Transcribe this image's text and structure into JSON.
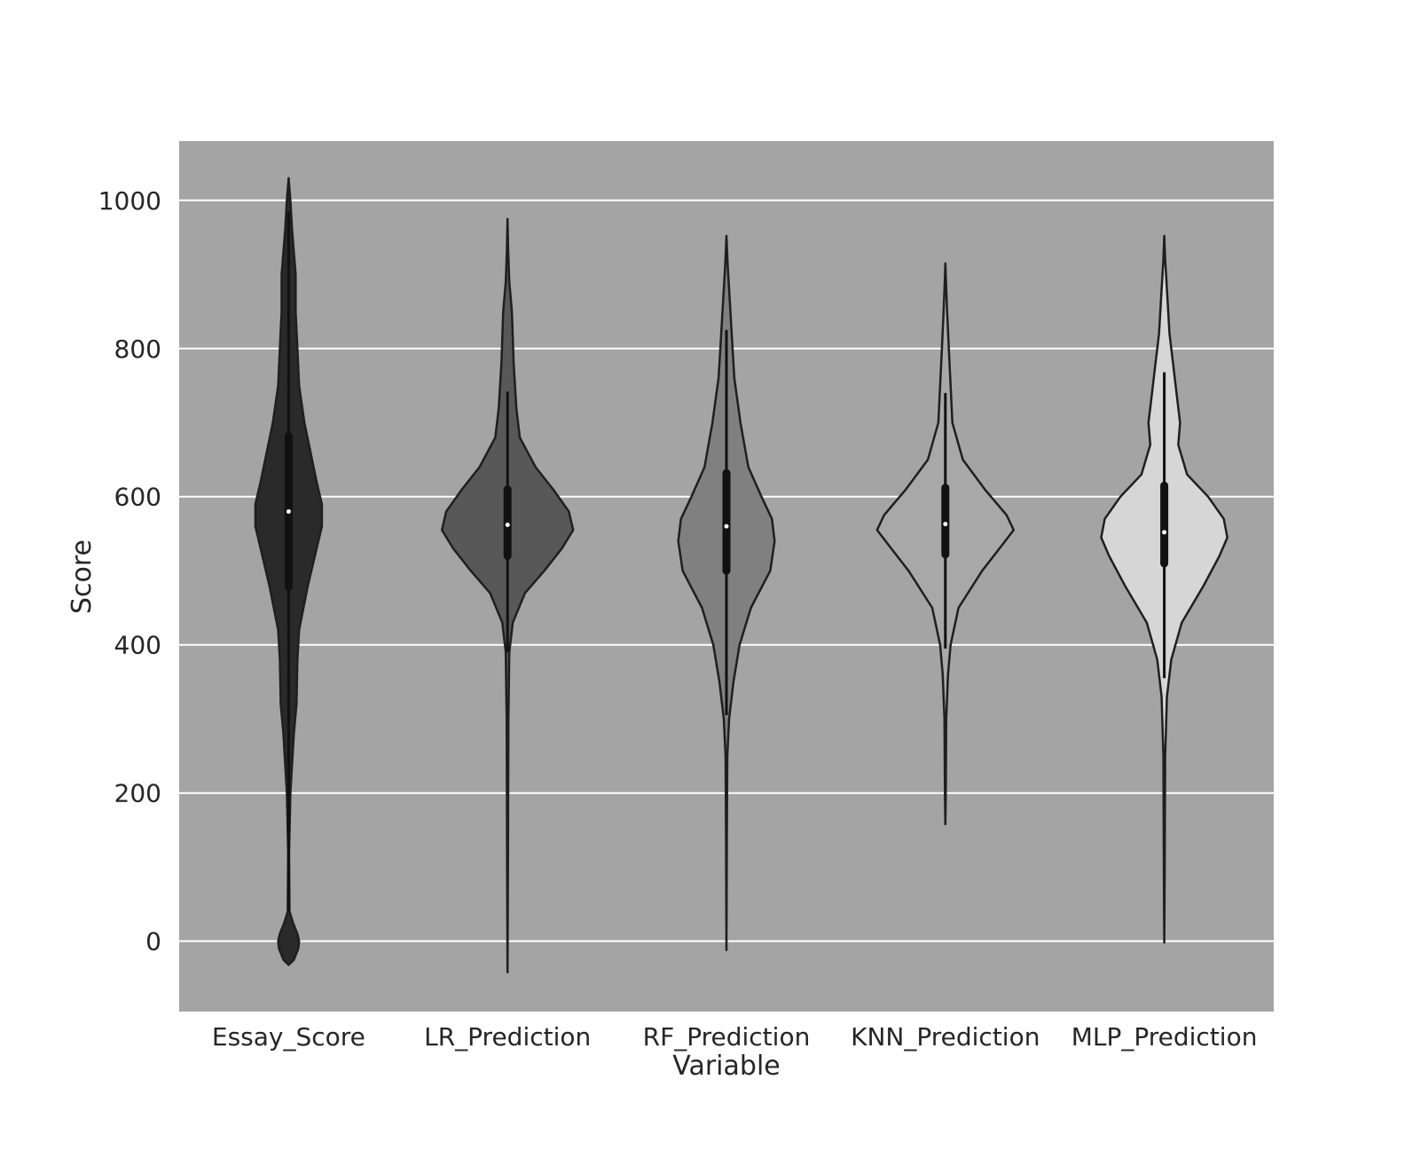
{
  "chart_data": {
    "type": "violin",
    "title": "",
    "xlabel": "Variable",
    "ylabel": "Score",
    "ylim": [
      -95,
      1080
    ],
    "yticks": [
      0,
      200,
      400,
      600,
      800,
      1000
    ],
    "grid": "horizontal",
    "colors": {
      "background": "#a4a4a4",
      "grid": "#ffffff",
      "outline": "#1f1f1f",
      "box": "#111111",
      "median": "#ffffff"
    },
    "categories": [
      "Essay_Score",
      "LR_Prediction",
      "RF_Prediction",
      "KNN_Prediction",
      "MLP_Prediction"
    ],
    "series": [
      {
        "fill": "#2a2a2a",
        "min": -32,
        "max": 1030,
        "q1": 478,
        "median": 580,
        "q3": 682,
        "whisker_low": 40,
        "whisker_high": 985,
        "density": [
          [
            -32,
            0
          ],
          [
            -25,
            0.06
          ],
          [
            -10,
            0.11
          ],
          [
            0,
            0.12
          ],
          [
            10,
            0.1
          ],
          [
            25,
            0.05
          ],
          [
            40,
            0.01
          ],
          [
            120,
            0.005
          ],
          [
            200,
            0.02
          ],
          [
            280,
            0.06
          ],
          [
            320,
            0.09
          ],
          [
            380,
            0.1
          ],
          [
            420,
            0.12
          ],
          [
            480,
            0.22
          ],
          [
            520,
            0.3
          ],
          [
            560,
            0.38
          ],
          [
            590,
            0.38
          ],
          [
            620,
            0.32
          ],
          [
            660,
            0.25
          ],
          [
            700,
            0.18
          ],
          [
            750,
            0.12
          ],
          [
            800,
            0.1
          ],
          [
            850,
            0.08
          ],
          [
            900,
            0.08
          ],
          [
            930,
            0.06
          ],
          [
            960,
            0.04
          ],
          [
            1000,
            0.02
          ],
          [
            1030,
            0
          ]
        ]
      },
      {
        "fill": "#585858",
        "min": -42,
        "max": 975,
        "q1": 520,
        "median": 562,
        "q3": 610,
        "whisker_low": 390,
        "whisker_high": 742,
        "density": [
          [
            -42,
            0
          ],
          [
            100,
            0.005
          ],
          [
            300,
            0.01
          ],
          [
            390,
            0.02
          ],
          [
            430,
            0.06
          ],
          [
            470,
            0.2
          ],
          [
            500,
            0.42
          ],
          [
            530,
            0.62
          ],
          [
            555,
            0.75
          ],
          [
            580,
            0.7
          ],
          [
            610,
            0.52
          ],
          [
            640,
            0.32
          ],
          [
            680,
            0.14
          ],
          [
            720,
            0.1
          ],
          [
            780,
            0.07
          ],
          [
            850,
            0.05
          ],
          [
            890,
            0.02
          ],
          [
            930,
            0.008
          ],
          [
            975,
            0
          ]
        ]
      },
      {
        "fill": "#808080",
        "min": -12,
        "max": 952,
        "q1": 500,
        "median": 560,
        "q3": 632,
        "whisker_low": 305,
        "whisker_high": 825,
        "density": [
          [
            -12,
            0
          ],
          [
            150,
            0.005
          ],
          [
            250,
            0.01
          ],
          [
            300,
            0.03
          ],
          [
            350,
            0.08
          ],
          [
            400,
            0.15
          ],
          [
            450,
            0.28
          ],
          [
            500,
            0.5
          ],
          [
            540,
            0.55
          ],
          [
            570,
            0.52
          ],
          [
            600,
            0.4
          ],
          [
            640,
            0.25
          ],
          [
            700,
            0.16
          ],
          [
            760,
            0.09
          ],
          [
            820,
            0.06
          ],
          [
            880,
            0.03
          ],
          [
            910,
            0.015
          ],
          [
            952,
            0
          ]
        ]
      },
      {
        "fill": "#a8a8a8",
        "min": 158,
        "max": 915,
        "q1": 522,
        "median": 563,
        "q3": 612,
        "whisker_low": 395,
        "whisker_high": 740,
        "density": [
          [
            158,
            0
          ],
          [
            200,
            0.005
          ],
          [
            300,
            0.01
          ],
          [
            360,
            0.03
          ],
          [
            400,
            0.06
          ],
          [
            450,
            0.15
          ],
          [
            500,
            0.42
          ],
          [
            535,
            0.65
          ],
          [
            555,
            0.78
          ],
          [
            575,
            0.7
          ],
          [
            610,
            0.45
          ],
          [
            650,
            0.2
          ],
          [
            700,
            0.08
          ],
          [
            750,
            0.06
          ],
          [
            800,
            0.04
          ],
          [
            850,
            0.02
          ],
          [
            880,
            0.01
          ],
          [
            915,
            0
          ]
        ]
      },
      {
        "fill": "#d6d6d6",
        "min": -2,
        "max": 952,
        "q1": 510,
        "median": 552,
        "q3": 615,
        "whisker_low": 355,
        "whisker_high": 768,
        "density": [
          [
            -2,
            0
          ],
          [
            100,
            0.005
          ],
          [
            250,
            0.01
          ],
          [
            330,
            0.03
          ],
          [
            380,
            0.08
          ],
          [
            430,
            0.2
          ],
          [
            480,
            0.45
          ],
          [
            520,
            0.63
          ],
          [
            545,
            0.72
          ],
          [
            570,
            0.68
          ],
          [
            600,
            0.5
          ],
          [
            630,
            0.26
          ],
          [
            670,
            0.16
          ],
          [
            700,
            0.18
          ],
          [
            740,
            0.14
          ],
          [
            780,
            0.1
          ],
          [
            820,
            0.06
          ],
          [
            880,
            0.03
          ],
          [
            920,
            0.01
          ],
          [
            952,
            0
          ]
        ]
      }
    ]
  }
}
